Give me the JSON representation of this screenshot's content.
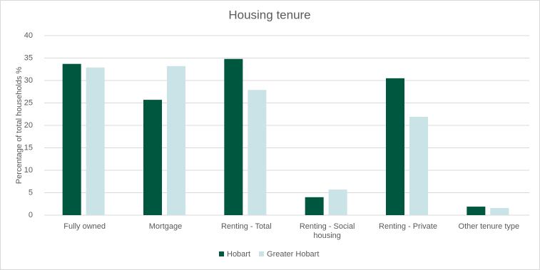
{
  "chart_data": {
    "type": "bar",
    "title": "Housing tenure",
    "y_label": "Percentage of total households %",
    "categories": [
      "Fully owned",
      "Mortgage",
      "Renting - Total",
      "Renting - Social housing",
      "Renting - Private",
      "Other tenure type"
    ],
    "series": [
      {
        "name": "Hobart",
        "color": "#00573f",
        "values": [
          33.7,
          25.7,
          34.8,
          4.0,
          30.5,
          1.9
        ]
      },
      {
        "name": "Greater Hobart",
        "color": "#c9e3e6",
        "values": [
          32.9,
          33.2,
          27.9,
          5.7,
          21.9,
          1.6
        ]
      }
    ],
    "ylim": [
      0,
      40
    ],
    "yticks": [
      0,
      5,
      10,
      15,
      20,
      25,
      30,
      35,
      40
    ],
    "grid": true
  }
}
